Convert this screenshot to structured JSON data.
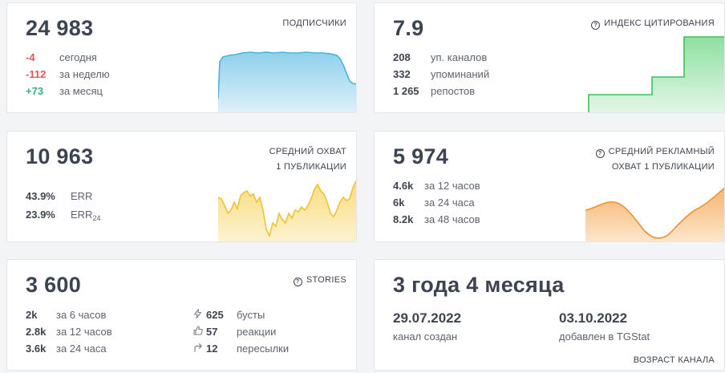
{
  "subscribers": {
    "value": "24 983",
    "label": "ПОДПИСЧИКИ",
    "rows": [
      {
        "value": "-4",
        "text": "сегодня",
        "color": "#e15757"
      },
      {
        "value": "-112",
        "text": "за неделю",
        "color": "#e15757"
      },
      {
        "value": "+73",
        "text": "за месяц",
        "color": "#36b37e"
      }
    ]
  },
  "citation": {
    "value": "7.9",
    "label": "ИНДЕКС ЦИТИРОВАНИЯ",
    "icon": "info-icon",
    "rows": [
      {
        "value": "208",
        "text": "уп. каналов"
      },
      {
        "value": "332",
        "text": "упоминаний"
      },
      {
        "value": "1 265",
        "text": "репостов"
      }
    ]
  },
  "avg_reach": {
    "value": "10 963",
    "label_line1": "СРЕДНИЙ ОХВАТ",
    "label_line2": "1 ПУБЛИКАЦИИ",
    "err": {
      "value": "43.9%",
      "text": "ERR"
    },
    "err24": {
      "value": "23.9%",
      "text": "ERR",
      "sub": "24"
    }
  },
  "ad_reach": {
    "value": "5 974",
    "label_line1": "СРЕДНИЙ РЕКЛАМНЫЙ",
    "label_line2": "ОХВАТ 1 ПУБЛИКАЦИИ",
    "icon": "info-icon",
    "rows": [
      {
        "value": "4.6k",
        "text": "за 12 часов"
      },
      {
        "value": "6k",
        "text": "за 24 часа"
      },
      {
        "value": "8.2k",
        "text": "за 48 часов"
      }
    ]
  },
  "stories": {
    "value": "3 600",
    "label": "STORIES",
    "icon": "info-icon",
    "rows": [
      {
        "value": "2k",
        "text": "за 6 часов"
      },
      {
        "value": "2.8k",
        "text": "за 12 часов"
      },
      {
        "value": "3.6k",
        "text": "за 24 часа"
      }
    ],
    "stats": [
      {
        "icon": "lightning-icon",
        "value": "625",
        "text": "бусты"
      },
      {
        "icon": "thumbs-up-icon",
        "value": "57",
        "text": "реакции"
      },
      {
        "icon": "share-arrow-icon",
        "value": "12",
        "text": "пересылки"
      }
    ]
  },
  "age": {
    "value": "3 года 4 месяца",
    "created_date": "29.07.2022",
    "created_text": "канал создан",
    "added_date": "03.10.2022",
    "added_text": "добавлен в TGStat",
    "label": "ВОЗРАСТ КАНАЛА"
  },
  "colors": {
    "blue": "#4bb3dd",
    "green": "#3cc159",
    "yellow": "#f2c230",
    "orange": "#f0912f"
  }
}
